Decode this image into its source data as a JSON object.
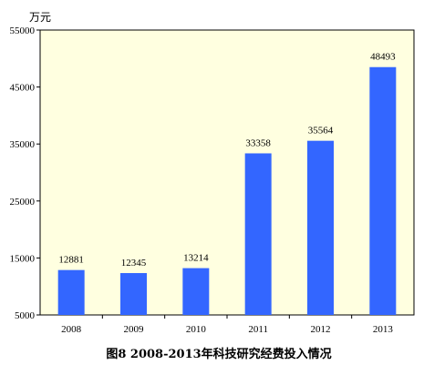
{
  "chart_data": {
    "type": "bar",
    "title": "图8  2008-2013年科技研究经费投入情况",
    "ylabel": "万元",
    "xlabel": "",
    "categories": [
      "2008",
      "2009",
      "2010",
      "2011",
      "2012",
      "2013"
    ],
    "values": [
      12881,
      12345,
      13214,
      33358,
      35564,
      48493
    ],
    "data_labels": [
      "12881",
      "12345",
      "13214",
      "33358",
      "35564",
      "48493"
    ],
    "ylim": [
      5000,
      55000
    ],
    "yticks": [
      5000,
      15000,
      25000,
      35000,
      45000,
      55000
    ],
    "ytick_labels": [
      "5000",
      "15000",
      "25000",
      "35000",
      "45000",
      "55000"
    ],
    "grid": false,
    "legend": "none",
    "colors": {
      "bar": "#3366ff",
      "plot_background": "#ffffe0",
      "axis": "#000000"
    }
  }
}
